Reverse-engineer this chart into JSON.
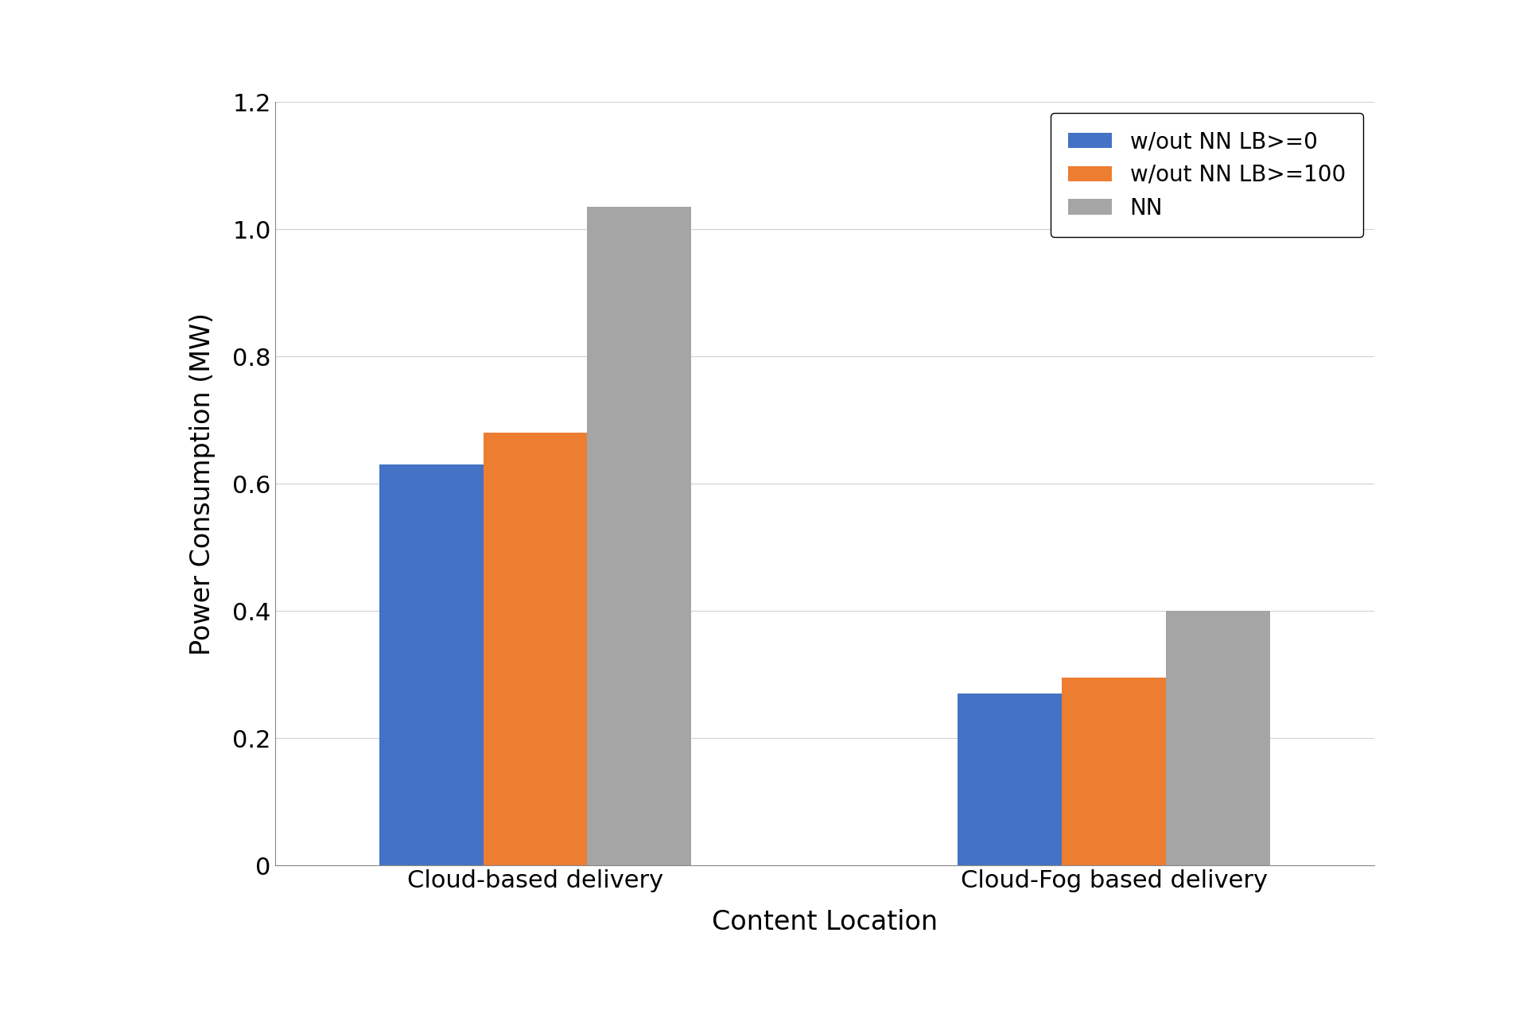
{
  "categories": [
    "Cloud-based delivery",
    "Cloud-Fog based delivery"
  ],
  "series": [
    {
      "label": "w/out NN LB>=0",
      "color": "#4472C4",
      "values": [
        0.63,
        0.27
      ]
    },
    {
      "label": "w/out NN LB>=100",
      "color": "#ED7D31",
      "values": [
        0.68,
        0.295
      ]
    },
    {
      "label": "NN",
      "color": "#A5A5A5",
      "values": [
        1.035,
        0.4
      ]
    }
  ],
  "ylabel": "Power Consumption (MW)",
  "xlabel": "Content Location",
  "ylim": [
    0,
    1.2
  ],
  "yticks": [
    0,
    0.2,
    0.4,
    0.6,
    0.8,
    1.0,
    1.2
  ],
  "bar_width": 0.18,
  "background_color": "#ffffff",
  "legend_loc": "upper right",
  "label_fontsize": 24,
  "tick_fontsize": 22,
  "legend_fontsize": 20,
  "group_positions": [
    0.0,
    1.0
  ]
}
